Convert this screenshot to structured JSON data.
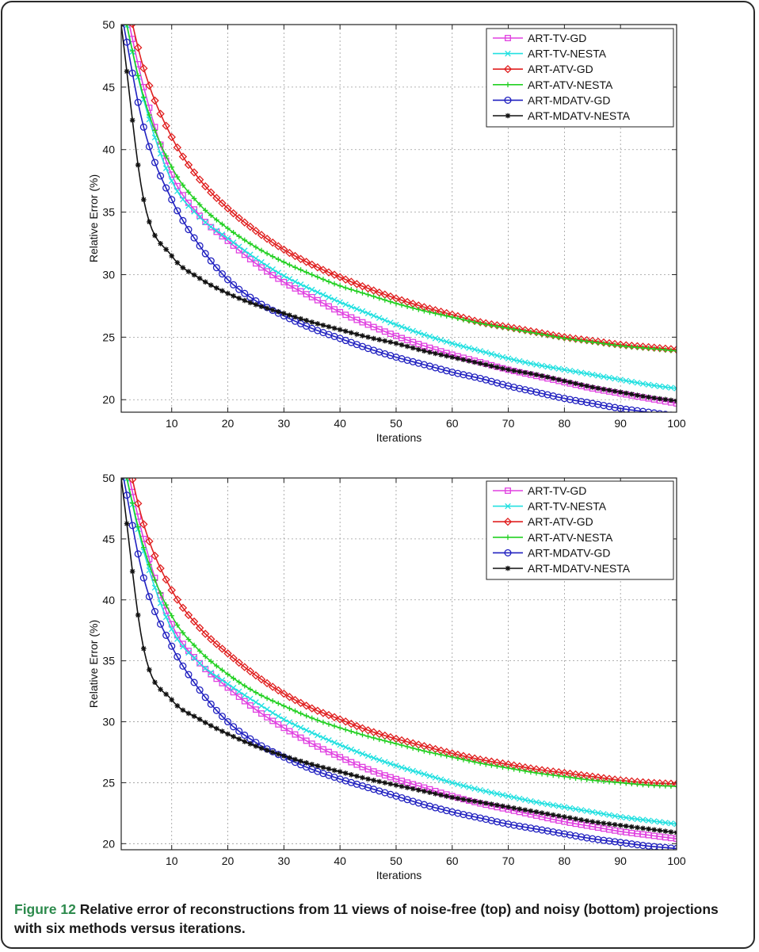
{
  "figure": {
    "caption_label": "Figure 12",
    "caption_text": "Relative error of reconstructions from 11 views of noise-free (top) and noisy (bottom) projections with six methods versus iterations."
  },
  "chart_data": [
    {
      "type": "line",
      "panel": "top",
      "title": "",
      "xlabel": "Iterations",
      "ylabel": "Relative Error (%)",
      "xlim": [
        1,
        100
      ],
      "ylim": [
        19,
        50
      ],
      "xticks": [
        10,
        20,
        30,
        40,
        50,
        60,
        70,
        80,
        90,
        100
      ],
      "yticks": [
        20,
        25,
        30,
        35,
        40,
        45,
        50
      ],
      "grid": true,
      "legend_position": "top-right",
      "x": [
        1,
        5,
        10,
        15,
        20,
        25,
        30,
        35,
        40,
        45,
        50,
        55,
        60,
        65,
        70,
        75,
        80,
        85,
        90,
        95,
        100
      ],
      "series": [
        {
          "name": "ART-TV-GD",
          "color": "#e040e0",
          "marker": "square",
          "values": [
            53.0,
            45.0,
            38.0,
            34.7,
            32.7,
            30.9,
            29.4,
            28.2,
            27.0,
            26.0,
            25.1,
            24.3,
            23.6,
            23.0,
            22.4,
            21.9,
            21.4,
            20.9,
            20.5,
            20.1,
            19.7
          ]
        },
        {
          "name": "ART-TV-NESTA",
          "color": "#22e0e0",
          "marker": "x",
          "values": [
            52.0,
            44.0,
            37.5,
            34.6,
            32.9,
            31.3,
            29.9,
            28.8,
            27.8,
            26.9,
            26.0,
            25.2,
            24.5,
            23.9,
            23.3,
            22.8,
            22.4,
            22.0,
            21.6,
            21.2,
            20.9
          ]
        },
        {
          "name": "ART-ATV-GD",
          "color": "#e02020",
          "marker": "diamond",
          "values": [
            54.0,
            46.5,
            41.0,
            37.6,
            35.3,
            33.5,
            32.0,
            30.8,
            29.8,
            28.9,
            28.1,
            27.4,
            26.8,
            26.2,
            25.8,
            25.4,
            25.0,
            24.7,
            24.4,
            24.2,
            24.0
          ]
        },
        {
          "name": "ART-ATV-NESTA",
          "color": "#22d022",
          "marker": "plus",
          "values": [
            52.0,
            44.2,
            38.6,
            35.6,
            33.7,
            32.2,
            31.0,
            30.0,
            29.1,
            28.4,
            27.7,
            27.1,
            26.6,
            26.1,
            25.7,
            25.3,
            24.9,
            24.6,
            24.3,
            24.1,
            23.9
          ]
        },
        {
          "name": "ART-MDATV-GD",
          "color": "#2020c0",
          "marker": "circle",
          "values": [
            51.0,
            41.8,
            36.0,
            32.3,
            29.6,
            27.9,
            26.7,
            25.7,
            24.9,
            24.1,
            23.4,
            22.8,
            22.2,
            21.7,
            21.1,
            20.6,
            20.1,
            19.7,
            19.3,
            19.0,
            18.7
          ]
        },
        {
          "name": "ART-MDATV-NESTA",
          "color": "#111111",
          "marker": "star",
          "values": [
            50.0,
            36.0,
            31.5,
            29.7,
            28.5,
            27.6,
            26.9,
            26.2,
            25.6,
            25.0,
            24.5,
            23.9,
            23.4,
            22.9,
            22.4,
            22.0,
            21.5,
            21.0,
            20.6,
            20.2,
            19.9
          ]
        }
      ]
    },
    {
      "type": "line",
      "panel": "bottom",
      "title": "",
      "xlabel": "Iterations",
      "ylabel": "Relative Error (%)",
      "xlim": [
        1,
        100
      ],
      "ylim": [
        19.5,
        50
      ],
      "xticks": [
        10,
        20,
        30,
        40,
        50,
        60,
        70,
        80,
        90,
        100
      ],
      "yticks": [
        20,
        25,
        30,
        35,
        40,
        45,
        50
      ],
      "grid": true,
      "legend_position": "top-right",
      "x": [
        1,
        5,
        10,
        15,
        20,
        25,
        30,
        35,
        40,
        45,
        50,
        55,
        60,
        65,
        70,
        75,
        80,
        85,
        90,
        95,
        100
      ],
      "series": [
        {
          "name": "ART-TV-GD",
          "color": "#e040e0",
          "marker": "square",
          "values": [
            53.0,
            45.0,
            38.0,
            34.8,
            32.8,
            31.0,
            29.5,
            28.2,
            27.1,
            26.1,
            25.3,
            24.6,
            23.9,
            23.3,
            22.8,
            22.3,
            21.8,
            21.4,
            21.0,
            20.7,
            20.4
          ]
        },
        {
          "name": "ART-TV-NESTA",
          "color": "#22e0e0",
          "marker": "x",
          "values": [
            52.0,
            44.0,
            37.6,
            34.8,
            33.1,
            31.6,
            30.2,
            29.1,
            28.1,
            27.2,
            26.4,
            25.7,
            25.0,
            24.4,
            23.9,
            23.4,
            23.0,
            22.6,
            22.2,
            21.9,
            21.6
          ]
        },
        {
          "name": "ART-ATV-GD",
          "color": "#e02020",
          "marker": "diamond",
          "values": [
            54.0,
            46.2,
            40.8,
            37.7,
            35.6,
            33.8,
            32.3,
            31.1,
            30.2,
            29.3,
            28.6,
            28.0,
            27.4,
            26.9,
            26.5,
            26.1,
            25.8,
            25.5,
            25.2,
            25.0,
            24.9
          ]
        },
        {
          "name": "ART-ATV-NESTA",
          "color": "#22d022",
          "marker": "plus",
          "values": [
            52.0,
            44.3,
            38.7,
            35.8,
            33.9,
            32.4,
            31.3,
            30.3,
            29.5,
            28.8,
            28.2,
            27.6,
            27.1,
            26.6,
            26.2,
            25.8,
            25.5,
            25.2,
            25.0,
            24.8,
            24.7
          ]
        },
        {
          "name": "ART-MDATV-GD",
          "color": "#2020c0",
          "marker": "circle",
          "values": [
            51.0,
            41.8,
            36.2,
            32.6,
            30.0,
            28.3,
            27.1,
            26.1,
            25.3,
            24.6,
            23.9,
            23.2,
            22.6,
            22.1,
            21.6,
            21.2,
            20.8,
            20.4,
            20.1,
            19.8,
            19.6
          ]
        },
        {
          "name": "ART-MDATV-NESTA",
          "color": "#111111",
          "marker": "star",
          "values": [
            50.0,
            36.0,
            31.8,
            30.2,
            29.0,
            28.0,
            27.2,
            26.5,
            25.9,
            25.3,
            24.8,
            24.3,
            23.8,
            23.4,
            23.0,
            22.6,
            22.2,
            21.8,
            21.5,
            21.2,
            20.9
          ]
        }
      ]
    }
  ]
}
